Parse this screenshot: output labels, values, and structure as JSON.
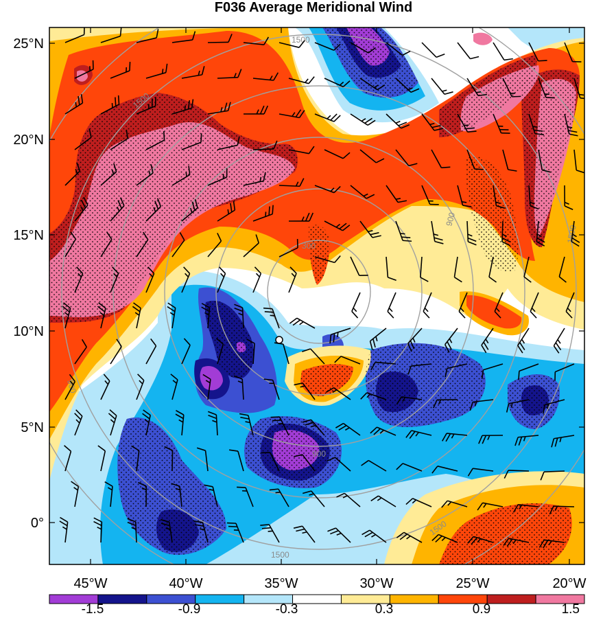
{
  "title": "F036 Average Meridional Wind",
  "axes": {
    "lat_labels": [
      "25°N",
      "20°N",
      "15°N",
      "10°N",
      "5°N",
      "0°"
    ],
    "lon_labels": [
      "45°W",
      "40°W",
      "35°W",
      "30°W",
      "25°W",
      "20°W"
    ]
  },
  "colorbar": {
    "labels": [
      "-1.5",
      "-0.9",
      "-0.3",
      "0.3",
      "0.9",
      "1.5"
    ],
    "colors": [
      "#a23cd6",
      "#14148c",
      "#3c50d2",
      "#14b4f0",
      "#b4e6fa",
      "#ffffff",
      "#ffeb96",
      "#ffb400",
      "#ff460a",
      "#be1e1e",
      "#f078a0"
    ]
  },
  "range_rings": {
    "labels": [
      "300",
      "900",
      "1500"
    ]
  },
  "center_marker": "storm-center-circle"
}
